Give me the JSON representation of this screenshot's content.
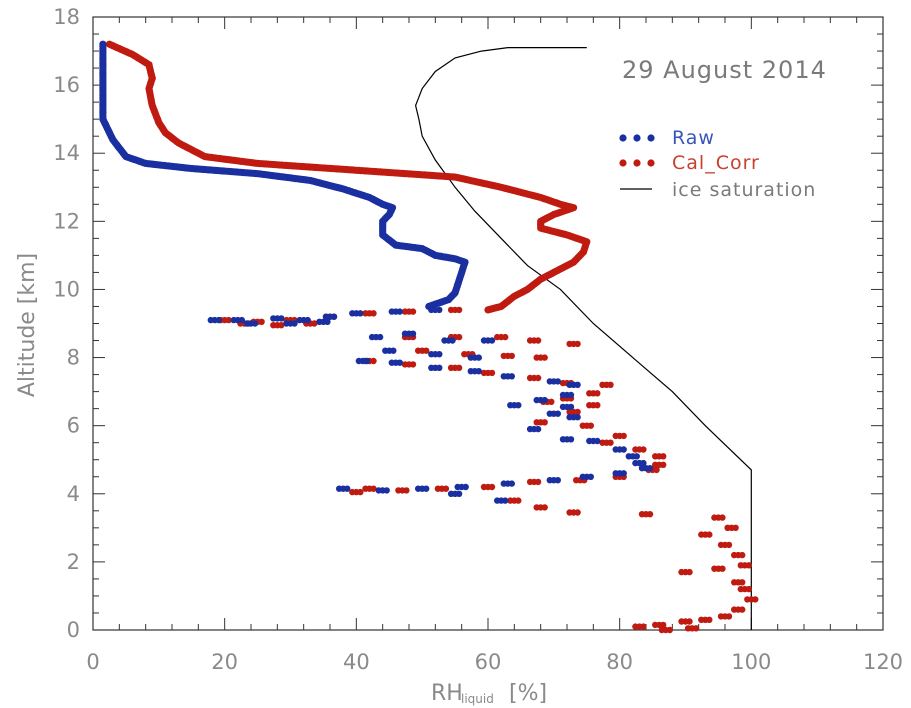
{
  "chart_data": {
    "type": "scatter",
    "annotation": "29 August 2014",
    "xlabel": "RH",
    "xlabel_sub": "liquid",
    "xlabel_unit": "[%]",
    "ylabel": "Altitude [km]",
    "xlim": [
      0,
      120
    ],
    "ylim": [
      0,
      18
    ],
    "x_ticks": [
      0,
      20,
      40,
      60,
      80,
      100,
      120
    ],
    "y_ticks": [
      0,
      2,
      4,
      6,
      8,
      10,
      12,
      14,
      16,
      18
    ],
    "grid": false,
    "legend_position": "top-right",
    "series": [
      {
        "name": "Raw",
        "color": "#1a2fa0",
        "style": "dots",
        "profile": [
          [
            1.5,
            17.2
          ],
          [
            1.5,
            15.0
          ],
          [
            3,
            14.4
          ],
          [
            5,
            13.9
          ],
          [
            8,
            13.7
          ],
          [
            15,
            13.55
          ],
          [
            25,
            13.4
          ],
          [
            33,
            13.2
          ],
          [
            38,
            12.95
          ],
          [
            42,
            12.7
          ],
          [
            44,
            12.5
          ],
          [
            45.5,
            12.4
          ],
          [
            45,
            12.2
          ],
          [
            44,
            12.0
          ],
          [
            44,
            11.6
          ],
          [
            46,
            11.3
          ],
          [
            50,
            11.2
          ],
          [
            52,
            11.0
          ],
          [
            55,
            10.9
          ],
          [
            56.5,
            10.8
          ],
          [
            56,
            10.5
          ],
          [
            55.5,
            10.2
          ],
          [
            55,
            9.9
          ],
          [
            54,
            9.7
          ],
          [
            51,
            9.5
          ]
        ],
        "scatter": [
          [
            18.5,
            9.1
          ],
          [
            22,
            9.1
          ],
          [
            28,
            9.15
          ],
          [
            32,
            9.1
          ],
          [
            36,
            9.2
          ],
          [
            40,
            9.3
          ],
          [
            46,
            9.35
          ],
          [
            52,
            9.4
          ],
          [
            24,
            9.0
          ],
          [
            30,
            9.0
          ],
          [
            35,
            9.05
          ],
          [
            43,
            8.6
          ],
          [
            48,
            8.7
          ],
          [
            54,
            8.5
          ],
          [
            60,
            8.5
          ],
          [
            45,
            8.2
          ],
          [
            52,
            8.1
          ],
          [
            58,
            8.0
          ],
          [
            41,
            7.9
          ],
          [
            46,
            7.85
          ],
          [
            52,
            7.7
          ],
          [
            58,
            7.6
          ],
          [
            63,
            7.45
          ],
          [
            70,
            7.3
          ],
          [
            73,
            7.2
          ],
          [
            72,
            6.9
          ],
          [
            68,
            6.75
          ],
          [
            64,
            6.6
          ],
          [
            72,
            6.55
          ],
          [
            70,
            6.35
          ],
          [
            73,
            6.25
          ],
          [
            67,
            5.9
          ],
          [
            72,
            5.6
          ],
          [
            76,
            5.55
          ],
          [
            80,
            5.3
          ],
          [
            82,
            5.1
          ],
          [
            83,
            4.9
          ],
          [
            84,
            4.75
          ],
          [
            80,
            4.6
          ],
          [
            75,
            4.5
          ],
          [
            70,
            4.4
          ],
          [
            63,
            4.3
          ],
          [
            56,
            4.2
          ],
          [
            50,
            4.15
          ],
          [
            44,
            4.1
          ],
          [
            38,
            4.15
          ],
          [
            55,
            4.0
          ],
          [
            62,
            3.8
          ]
        ]
      },
      {
        "name": "Cal_Corr",
        "color": "#c01b10",
        "style": "dots",
        "profile": [
          [
            2.5,
            17.2
          ],
          [
            6,
            16.9
          ],
          [
            8.5,
            16.6
          ],
          [
            9,
            16.2
          ],
          [
            8.5,
            15.9
          ],
          [
            9,
            15.4
          ],
          [
            10,
            14.9
          ],
          [
            11,
            14.6
          ],
          [
            13,
            14.3
          ],
          [
            17,
            13.9
          ],
          [
            25,
            13.7
          ],
          [
            40,
            13.5
          ],
          [
            55,
            13.3
          ],
          [
            62,
            13.0
          ],
          [
            68,
            12.7
          ],
          [
            71,
            12.5
          ],
          [
            73,
            12.4
          ],
          [
            70,
            12.2
          ],
          [
            68,
            12.0
          ],
          [
            68,
            11.8
          ],
          [
            72,
            11.6
          ],
          [
            75,
            11.4
          ],
          [
            74.5,
            11.1
          ],
          [
            73,
            10.8
          ],
          [
            70,
            10.5
          ],
          [
            68,
            10.3
          ],
          [
            66,
            10.0
          ],
          [
            64,
            9.8
          ],
          [
            62,
            9.5
          ],
          [
            60,
            9.4
          ]
        ],
        "scatter": [
          [
            20,
            9.1
          ],
          [
            25,
            9.05
          ],
          [
            30,
            9.1
          ],
          [
            36,
            9.2
          ],
          [
            42,
            9.3
          ],
          [
            48,
            9.35
          ],
          [
            55,
            9.4
          ],
          [
            23,
            9.0
          ],
          [
            28,
            8.95
          ],
          [
            33,
            9.0
          ],
          [
            48,
            8.6
          ],
          [
            55,
            8.6
          ],
          [
            62,
            8.6
          ],
          [
            67,
            8.5
          ],
          [
            73,
            8.4
          ],
          [
            50,
            8.2
          ],
          [
            57,
            8.1
          ],
          [
            63,
            8.05
          ],
          [
            68,
            8.0
          ],
          [
            42,
            7.9
          ],
          [
            48,
            7.8
          ],
          [
            55,
            7.7
          ],
          [
            60,
            7.55
          ],
          [
            67,
            7.4
          ],
          [
            72,
            7.25
          ],
          [
            78,
            7.2
          ],
          [
            76,
            6.95
          ],
          [
            72,
            6.8
          ],
          [
            69,
            6.7
          ],
          [
            76,
            6.6
          ],
          [
            73,
            6.4
          ],
          [
            68,
            6.1
          ],
          [
            75,
            6.0
          ],
          [
            80,
            5.7
          ],
          [
            78,
            5.5
          ],
          [
            83,
            5.3
          ],
          [
            86,
            5.1
          ],
          [
            86,
            4.85
          ],
          [
            85,
            4.7
          ],
          [
            80,
            4.5
          ],
          [
            74,
            4.4
          ],
          [
            67,
            4.35
          ],
          [
            60,
            4.2
          ],
          [
            53,
            4.15
          ],
          [
            47,
            4.1
          ],
          [
            42,
            4.15
          ],
          [
            40,
            4.05
          ],
          [
            64,
            3.8
          ],
          [
            68,
            3.6
          ],
          [
            73,
            3.45
          ],
          [
            84,
            3.4
          ],
          [
            95,
            3.3
          ],
          [
            97,
            3.0
          ],
          [
            93,
            2.8
          ],
          [
            96,
            2.5
          ],
          [
            98,
            2.2
          ],
          [
            99,
            1.9
          ],
          [
            95,
            1.8
          ],
          [
            90,
            1.7
          ],
          [
            98,
            1.4
          ],
          [
            99,
            1.2
          ],
          [
            100,
            0.9
          ],
          [
            98,
            0.6
          ],
          [
            96,
            0.4
          ],
          [
            93,
            0.3
          ],
          [
            90,
            0.25
          ],
          [
            86,
            0.15
          ],
          [
            83,
            0.1
          ],
          [
            87,
            0.0
          ],
          [
            91,
            0.05
          ]
        ]
      },
      {
        "name": "ice saturation",
        "color": "#000000",
        "style": "line",
        "profile": [
          [
            100,
            0.0
          ],
          [
            100,
            4.7
          ],
          [
            93,
            6.0
          ],
          [
            88,
            7.0
          ],
          [
            82,
            8.0
          ],
          [
            76,
            9.0
          ],
          [
            71,
            10.0
          ],
          [
            66,
            10.7
          ],
          [
            62,
            11.5
          ],
          [
            58,
            12.3
          ],
          [
            55,
            13.0
          ],
          [
            52,
            13.8
          ],
          [
            50,
            14.5
          ],
          [
            49.5,
            15.0
          ],
          [
            49,
            15.4
          ],
          [
            50,
            15.9
          ],
          [
            52,
            16.4
          ],
          [
            55,
            16.8
          ],
          [
            59,
            17.0
          ],
          [
            63,
            17.1
          ],
          [
            75,
            17.1
          ]
        ]
      }
    ]
  }
}
